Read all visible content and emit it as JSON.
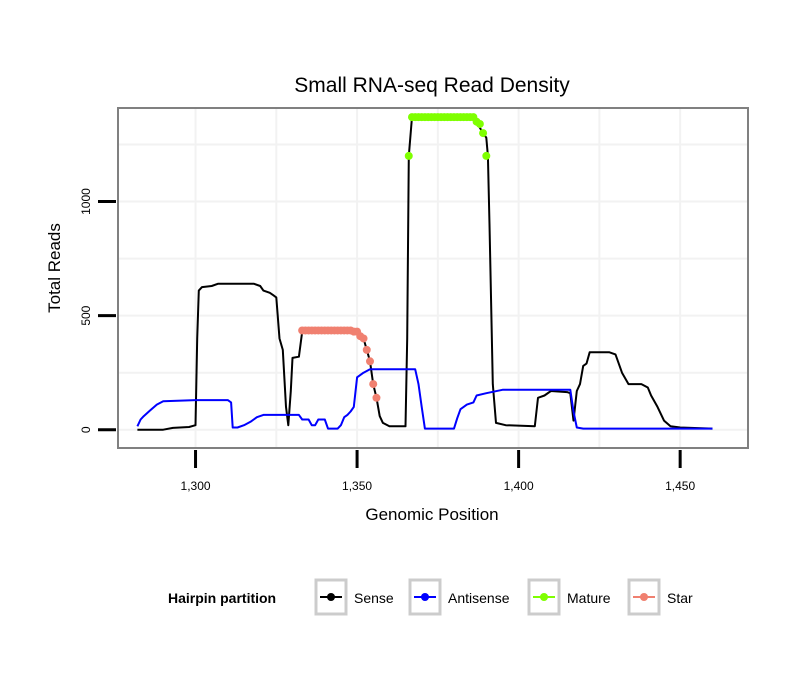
{
  "chart_data": {
    "type": "line",
    "title": "Small RNA-seq Read Density",
    "xlabel": "Genomic Position",
    "ylabel": "Total Reads",
    "xlim": [
      1276,
      1471
    ],
    "ylim": [
      -80,
      1410
    ],
    "x_ticks": [
      1300,
      1350,
      1400,
      1450
    ],
    "x_tick_labels": [
      "1,300",
      "1,350",
      "1,400",
      "1,450"
    ],
    "y_ticks": [
      0,
      500,
      1000
    ],
    "y_tick_labels": [
      "0",
      "500",
      "1000"
    ],
    "grid": true,
    "legend": {
      "title": "Hairpin partition",
      "position": "bottom",
      "entries": [
        {
          "label": "Sense",
          "color": "#000000"
        },
        {
          "label": "Antisense",
          "color": "#0000ff"
        },
        {
          "label": "Mature",
          "color": "#7fff00"
        },
        {
          "label": "Star",
          "color": "#f08070"
        }
      ]
    },
    "series": [
      {
        "name": "Sense",
        "color": "#000000",
        "points": [
          [
            1282,
            0
          ],
          [
            1290,
            0
          ],
          [
            1293,
            8
          ],
          [
            1298,
            12
          ],
          [
            1300,
            20
          ],
          [
            1300.5,
            400
          ],
          [
            1301,
            610
          ],
          [
            1302,
            625
          ],
          [
            1305,
            630
          ],
          [
            1307,
            640
          ],
          [
            1318,
            640
          ],
          [
            1320,
            630
          ],
          [
            1321,
            610
          ],
          [
            1323,
            600
          ],
          [
            1324,
            590
          ],
          [
            1325,
            580
          ],
          [
            1326,
            400
          ],
          [
            1327,
            350
          ],
          [
            1328,
            100
          ],
          [
            1328.7,
            20
          ],
          [
            1329.5,
            170
          ],
          [
            1330,
            315
          ],
          [
            1332,
            320
          ],
          [
            1333,
            430
          ],
          [
            1335,
            435
          ],
          [
            1345,
            435
          ],
          [
            1350,
            430
          ],
          [
            1351,
            410
          ],
          [
            1352,
            400
          ],
          [
            1353,
            350
          ],
          [
            1354,
            300
          ],
          [
            1355,
            200
          ],
          [
            1356,
            140
          ],
          [
            1357,
            60
          ],
          [
            1358,
            30
          ],
          [
            1360,
            15
          ],
          [
            1365,
            15
          ],
          [
            1365.5,
            400
          ],
          [
            1366,
            1200
          ],
          [
            1367,
            1370
          ],
          [
            1386,
            1370
          ],
          [
            1389,
            1300
          ],
          [
            1390,
            1280
          ],
          [
            1390.5,
            1200
          ],
          [
            1391,
            900
          ],
          [
            1392,
            200
          ],
          [
            1393,
            30
          ],
          [
            1396,
            20
          ],
          [
            1405,
            15
          ],
          [
            1406,
            140
          ],
          [
            1408,
            150
          ],
          [
            1410,
            170
          ],
          [
            1415,
            165
          ],
          [
            1416,
            160
          ],
          [
            1417,
            40
          ],
          [
            1418,
            170
          ],
          [
            1419,
            200
          ],
          [
            1420,
            280
          ],
          [
            1421,
            290
          ],
          [
            1422,
            340
          ],
          [
            1428,
            340
          ],
          [
            1429,
            335
          ],
          [
            1430,
            330
          ],
          [
            1432,
            250
          ],
          [
            1434,
            200
          ],
          [
            1438,
            200
          ],
          [
            1440,
            185
          ],
          [
            1441,
            150
          ],
          [
            1443,
            100
          ],
          [
            1445,
            40
          ],
          [
            1447,
            15
          ],
          [
            1450,
            10
          ],
          [
            1460,
            5
          ]
        ]
      },
      {
        "name": "Antisense",
        "color": "#0000ff",
        "points": [
          [
            1282,
            15
          ],
          [
            1283,
            45
          ],
          [
            1284,
            60
          ],
          [
            1286,
            85
          ],
          [
            1288,
            110
          ],
          [
            1290,
            125
          ],
          [
            1300,
            130
          ],
          [
            1310,
            130
          ],
          [
            1311,
            120
          ],
          [
            1311.5,
            10
          ],
          [
            1313,
            10
          ],
          [
            1315,
            20
          ],
          [
            1317,
            35
          ],
          [
            1319,
            55
          ],
          [
            1321,
            65
          ],
          [
            1332,
            65
          ],
          [
            1333,
            45
          ],
          [
            1335,
            45
          ],
          [
            1336,
            20
          ],
          [
            1337,
            20
          ],
          [
            1338,
            45
          ],
          [
            1340,
            45
          ],
          [
            1341,
            5
          ],
          [
            1344,
            5
          ],
          [
            1345,
            20
          ],
          [
            1346,
            55
          ],
          [
            1347,
            65
          ],
          [
            1348,
            80
          ],
          [
            1349,
            100
          ],
          [
            1350,
            230
          ],
          [
            1352,
            250
          ],
          [
            1354,
            265
          ],
          [
            1368,
            265
          ],
          [
            1369,
            200
          ],
          [
            1370,
            100
          ],
          [
            1371,
            5
          ],
          [
            1380,
            5
          ],
          [
            1381,
            50
          ],
          [
            1382,
            90
          ],
          [
            1384,
            110
          ],
          [
            1386,
            120
          ],
          [
            1387,
            150
          ],
          [
            1390,
            160
          ],
          [
            1395,
            175
          ],
          [
            1416,
            175
          ],
          [
            1417,
            80
          ],
          [
            1418,
            10
          ],
          [
            1420,
            5
          ],
          [
            1460,
            5
          ]
        ]
      },
      {
        "name": "Mature",
        "color": "#7fff00",
        "line": false,
        "points": [
          [
            1366,
            1200
          ],
          [
            1367,
            1370
          ],
          [
            1368,
            1370
          ],
          [
            1369,
            1370
          ],
          [
            1370,
            1370
          ],
          [
            1371,
            1370
          ],
          [
            1372,
            1370
          ],
          [
            1373,
            1370
          ],
          [
            1374,
            1370
          ],
          [
            1375,
            1370
          ],
          [
            1376,
            1370
          ],
          [
            1377,
            1370
          ],
          [
            1378,
            1370
          ],
          [
            1379,
            1370
          ],
          [
            1380,
            1370
          ],
          [
            1381,
            1370
          ],
          [
            1382,
            1370
          ],
          [
            1383,
            1370
          ],
          [
            1384,
            1370
          ],
          [
            1385,
            1370
          ],
          [
            1386,
            1370
          ],
          [
            1387,
            1350
          ],
          [
            1388,
            1340
          ],
          [
            1389,
            1300
          ],
          [
            1390,
            1200
          ]
        ]
      },
      {
        "name": "Star",
        "color": "#f08070",
        "line": false,
        "points": [
          [
            1333,
            435
          ],
          [
            1334,
            435
          ],
          [
            1335,
            435
          ],
          [
            1336,
            435
          ],
          [
            1337,
            435
          ],
          [
            1338,
            435
          ],
          [
            1339,
            435
          ],
          [
            1340,
            435
          ],
          [
            1341,
            435
          ],
          [
            1342,
            435
          ],
          [
            1343,
            435
          ],
          [
            1344,
            435
          ],
          [
            1345,
            435
          ],
          [
            1346,
            435
          ],
          [
            1347,
            435
          ],
          [
            1348,
            435
          ],
          [
            1349,
            430
          ],
          [
            1350,
            430
          ],
          [
            1351,
            410
          ],
          [
            1352,
            400
          ],
          [
            1353,
            350
          ],
          [
            1354,
            300
          ],
          [
            1355,
            200
          ],
          [
            1356,
            140
          ]
        ]
      }
    ]
  }
}
